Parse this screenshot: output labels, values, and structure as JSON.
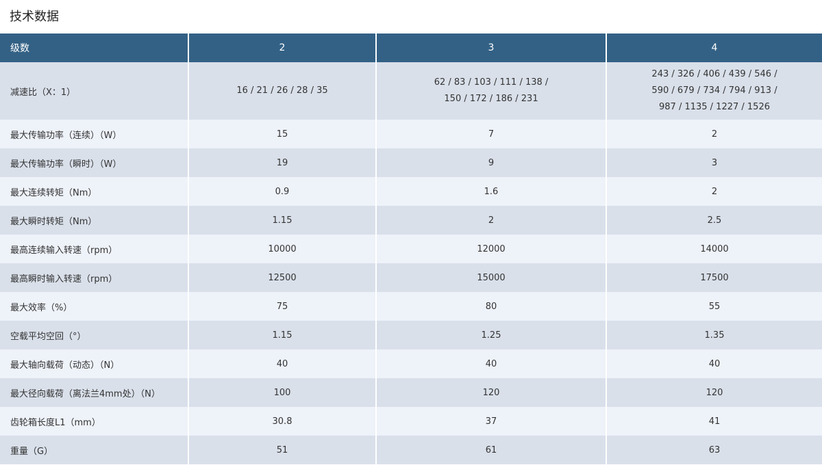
{
  "title": "技术数据",
  "table": {
    "headers": [
      "级数",
      "2",
      "3",
      "4"
    ],
    "rows": [
      {
        "label": "减速比（X：1）",
        "values": [
          [
            "16 / 21 / 26 / 28 / 35"
          ],
          [
            "62 / 83 / 103 / 111 / 138 /",
            "150 / 172 / 186 / 231"
          ],
          [
            "243 / 326 / 406 / 439 / 546 /",
            "590 / 679 / 734 / 794 / 913 /",
            "987 / 1135 / 1227 / 1526"
          ]
        ]
      },
      {
        "label": "最大传输功率（连续）（W）",
        "values": [
          "15",
          "7",
          "2"
        ]
      },
      {
        "label": "最大传输功率（瞬时）（W）",
        "values": [
          "19",
          "9",
          "3"
        ]
      },
      {
        "label": "最大连续转矩（Nm）",
        "values": [
          "0.9",
          "1.6",
          "2"
        ]
      },
      {
        "label": "最大瞬时转矩（Nm）",
        "values": [
          "1.15",
          "2",
          "2.5"
        ]
      },
      {
        "label": "最高连续输入转速（rpm）",
        "values": [
          "10000",
          "12000",
          "14000"
        ]
      },
      {
        "label": "最高瞬时输入转速（rpm）",
        "values": [
          "12500",
          "15000",
          "17500"
        ]
      },
      {
        "label": "最大效率（%）",
        "values": [
          "75",
          "80",
          "55"
        ]
      },
      {
        "label": "空载平均空回（°）",
        "values": [
          "1.15",
          "1.25",
          "1.35"
        ]
      },
      {
        "label": "最大轴向载荷（动态）（N）",
        "values": [
          "40",
          "40",
          "40"
        ]
      },
      {
        "label": "最大径向载荷（离法兰4mm处）（N）",
        "values": [
          "100",
          "120",
          "120"
        ]
      },
      {
        "label": "齿轮箱长度L1（mm）",
        "values": [
          "30.8",
          "37",
          "41"
        ]
      },
      {
        "label": "重量（G）",
        "values": [
          "51",
          "61",
          "63"
        ]
      }
    ]
  },
  "colors": {
    "header_bg": "#336185",
    "row_dark": "#d9e0ea",
    "row_light": "#eef2f9"
  }
}
